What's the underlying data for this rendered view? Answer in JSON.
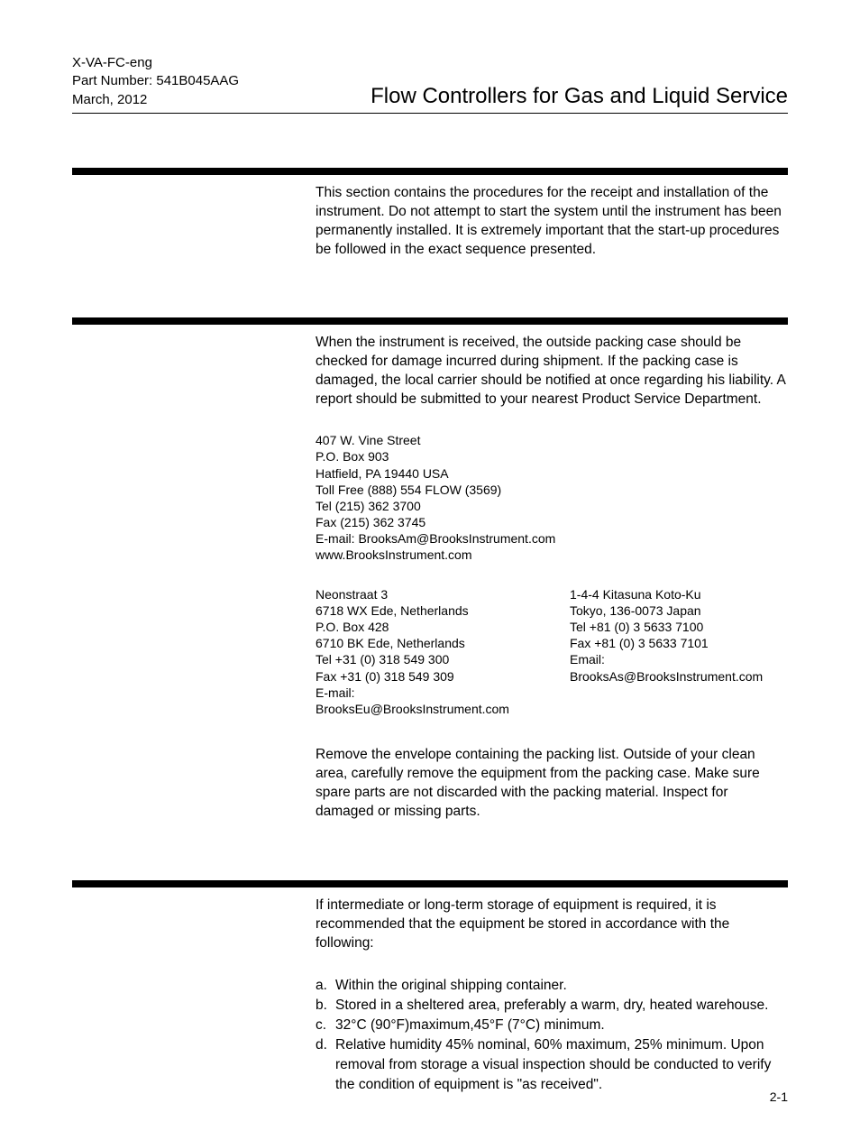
{
  "header": {
    "doc_id": "X-VA-FC-eng",
    "part_number_label": "Part Number: 541B045AAG",
    "date": "March, 2012",
    "title": "Flow Controllers for Gas and Liquid Service"
  },
  "intro_paragraph": "This section contains the procedures for the receipt and installation of the instrument. Do not attempt to start the system until the instrument has been permanently installed. It is extremely important that the start-up procedures be followed in the exact sequence presented.",
  "receipt_paragraph": "When the instrument is received, the outside packing case should be checked for damage incurred during shipment. If the packing case is damaged, the local carrier should be notified at once regarding his liability. A report should be submitted to your nearest Product Service Department.",
  "contact_usa": {
    "line1": "407 W. Vine Street",
    "line2": "P.O. Box 903",
    "line3": "Hatfield, PA 19440 USA",
    "line4": "Toll Free (888) 554 FLOW (3569)",
    "line5": "Tel (215) 362 3700",
    "line6": "Fax (215) 362 3745",
    "line7": "E-mail: BrooksAm@BrooksInstrument.com",
    "line8": "www.BrooksInstrument.com"
  },
  "contact_eu": {
    "line1": "Neonstraat 3",
    "line2": "6718 WX Ede, Netherlands",
    "line3": "P.O. Box 428",
    "line4": "6710 BK Ede, Netherlands",
    "line5": "Tel +31 (0) 318 549 300",
    "line6": "Fax +31 (0) 318 549 309",
    "line7": "E-mail: BrooksEu@BrooksInstrument.com"
  },
  "contact_jp": {
    "line1": "1-4-4 Kitasuna Koto-Ku",
    "line2": "Tokyo, 136-0073 Japan",
    "line3": "Tel  +81 (0) 3 5633 7100",
    "line4": "Fax +81 (0) 3 5633 7101",
    "line5": "Email: BrooksAs@BrooksInstrument.com"
  },
  "unpack_paragraph": "Remove the envelope containing the packing list. Outside of your clean area, carefully remove the equipment from the packing case. Make sure spare parts are not discarded with the packing material. Inspect for damaged or missing parts.",
  "storage_intro": "If intermediate or long-term storage of equipment is required, it is recommended that the equipment be stored in accordance with the following:",
  "storage_list": {
    "a": {
      "marker": "a.",
      "text": "Within the original shipping container."
    },
    "b": {
      "marker": "b.",
      "text": "Stored in a sheltered area, preferably a warm, dry, heated warehouse."
    },
    "c": {
      "marker": "c.",
      "text": "32°C (90°F)maximum,45°F (7°C) minimum."
    },
    "d": {
      "marker": "d.",
      "text": "Relative humidity 45% nominal, 60% maximum, 25% minimum. Upon removal from storage a visual inspection should be conducted to verify the condition of equipment is \"as received\"."
    }
  },
  "page_number": "2-1"
}
